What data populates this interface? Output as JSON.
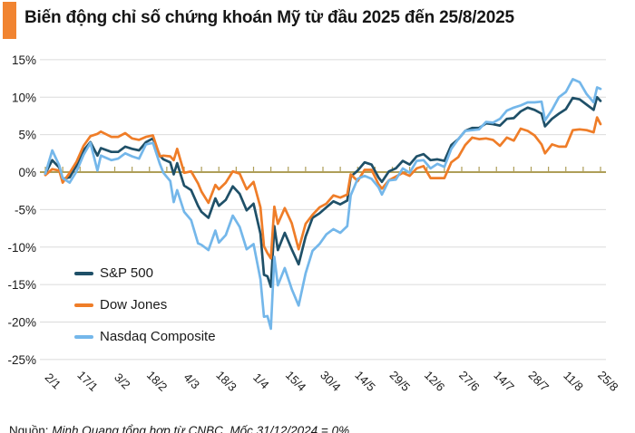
{
  "header": {
    "title": "Biến động chỉ số chứng khoán Mỹ từ đầu 2025 đến 25/8/2025",
    "accent_color": "#F18431"
  },
  "footer": {
    "prefix": "Nguồn:",
    "body": " Minh Quang tổng hợp từ CNBC. Mốc 31/12/2024 = 0%."
  },
  "chart_data": {
    "type": "line",
    "title": "Biến động chỉ số chứng khoán Mỹ từ đầu 2025 đến 25/8/2025",
    "xlabel": "",
    "ylabel": "",
    "baseline_note": "31/12/2024 = 0%",
    "grid": "horizontal-only",
    "grid_color": "#DBDBDB",
    "zero_line_color": "#AE9E58",
    "text_color": "#1a1a1a",
    "ylim": [
      -25,
      15
    ],
    "x_range": [
      0,
      160
    ],
    "y_ticks": [
      {
        "value": 15,
        "label": "15%"
      },
      {
        "value": 10,
        "label": "10%"
      },
      {
        "value": 5,
        "label": "5%"
      },
      {
        "value": 0,
        "label": "0%"
      },
      {
        "value": -5,
        "label": "-5%"
      },
      {
        "value": -10,
        "label": "-10%"
      },
      {
        "value": -15,
        "label": "-15%"
      },
      {
        "value": -20,
        "label": "-20%"
      },
      {
        "value": -25,
        "label": "-25%"
      }
    ],
    "x_tick_indices": [
      0,
      10,
      20,
      30,
      40,
      50,
      60,
      70,
      80,
      90,
      100,
      110,
      120,
      130,
      140,
      150,
      160
    ],
    "x_tick_labels": [
      "2/1",
      "17/1",
      "3/2",
      "18/2",
      "4/3",
      "18/3",
      "1/4",
      "15/4",
      "30/4",
      "14/5",
      "29/5",
      "12/6",
      "27/6",
      "14/7",
      "28/7",
      "11/8",
      "25/8"
    ],
    "legend_position": "inside-left-bottom",
    "x": [
      0,
      2,
      4,
      5,
      7,
      9,
      11,
      13,
      15,
      16,
      19,
      21,
      23,
      25,
      27,
      29,
      31,
      33,
      34,
      36,
      37,
      38,
      40,
      42,
      44,
      45,
      47,
      49,
      50,
      52,
      54,
      56,
      58,
      60,
      62,
      63,
      64,
      65,
      66,
      67,
      69,
      71,
      73,
      75,
      77,
      79,
      81,
      83,
      85,
      87,
      88,
      90,
      92,
      94,
      96,
      97,
      99,
      101,
      103,
      105,
      107,
      109,
      111,
      113,
      115,
      117,
      119,
      121,
      123,
      125,
      127,
      129,
      131,
      133,
      135,
      137,
      139,
      141,
      143,
      144,
      146,
      148,
      150,
      152,
      154,
      156,
      158,
      159,
      160
    ],
    "series": [
      {
        "id": "sp500",
        "name": "S&P 500",
        "color": "#1F5068",
        "unit": "% YTD",
        "values": [
          -0.2,
          1.6,
          0.6,
          -0.9,
          -0.7,
          0.9,
          2.9,
          4.0,
          2.2,
          3.2,
          2.7,
          2.7,
          3.4,
          3.1,
          2.9,
          4.0,
          4.5,
          2.2,
          1.7,
          1.3,
          -0.3,
          1.2,
          -1.8,
          -2.4,
          -4.5,
          -5.3,
          -6.1,
          -3.5,
          -4.5,
          -3.7,
          -1.9,
          -2.9,
          -5.1,
          -4.2,
          -8.2,
          -13.7,
          -13.9,
          -15.3,
          -7.2,
          -10.4,
          -8.1,
          -10.3,
          -12.3,
          -8.6,
          -6.1,
          -5.5,
          -4.7,
          -3.9,
          -4.3,
          -3.8,
          -0.6,
          0.2,
          1.3,
          1.0,
          -0.7,
          -1.3,
          0.1,
          0.5,
          1.5,
          1.0,
          2.1,
          2.4,
          1.6,
          1.7,
          1.5,
          3.6,
          4.4,
          5.5,
          5.9,
          5.9,
          6.5,
          6.4,
          6.2,
          7.1,
          7.2,
          8.1,
          8.6,
          8.3,
          7.8,
          6.1,
          7.1,
          7.8,
          8.4,
          9.9,
          9.7,
          9.0,
          8.3,
          10.0,
          9.5
        ]
      },
      {
        "id": "dowjones",
        "name": "Dow Jones",
        "color": "#EF7D28",
        "unit": "% YTD",
        "values": [
          -0.4,
          0.4,
          0.2,
          -1.4,
          -0.1,
          1.4,
          3.5,
          4.8,
          5.1,
          5.4,
          4.7,
          4.7,
          5.2,
          4.5,
          4.3,
          4.7,
          4.9,
          2.1,
          2.2,
          2.1,
          1.6,
          3.1,
          -0.1,
          0.1,
          -1.5,
          -2.6,
          -4.1,
          -1.7,
          -2.3,
          -1.4,
          0.1,
          -0.2,
          -2.3,
          -1.3,
          -4.7,
          -9.9,
          -10.8,
          -11.5,
          -4.6,
          -6.9,
          -4.8,
          -6.8,
          -10.3,
          -6.9,
          -5.7,
          -4.7,
          -4.2,
          -3.1,
          -3.4,
          -3.0,
          -0.3,
          -1.2,
          0.3,
          0.3,
          -1.6,
          -2.2,
          -1.1,
          -0.6,
          -0.1,
          -0.5,
          0.5,
          0.8,
          -0.8,
          -0.8,
          -0.8,
          1.3,
          2.0,
          3.6,
          4.6,
          4.4,
          4.5,
          4.3,
          3.5,
          4.6,
          4.2,
          5.8,
          5.5,
          4.9,
          3.7,
          2.5,
          3.7,
          3.4,
          3.4,
          5.6,
          5.7,
          5.6,
          5.3,
          7.3,
          6.4
        ]
      },
      {
        "id": "nasdaq",
        "name": "Nasdaq Composite",
        "color": "#74B7EA",
        "unit": "% YTD",
        "values": [
          -0.2,
          2.9,
          0.9,
          -0.8,
          -1.4,
          0.1,
          2.3,
          3.9,
          0.2,
          2.2,
          1.6,
          1.8,
          2.5,
          2.1,
          1.8,
          3.7,
          3.9,
          1.1,
          -0.1,
          -1.2,
          -4.0,
          -2.4,
          -5.3,
          -6.4,
          -9.5,
          -9.7,
          -10.4,
          -7.8,
          -9.4,
          -8.4,
          -5.8,
          -7.3,
          -10.3,
          -9.6,
          -14.3,
          -19.3,
          -19.2,
          -20.9,
          -11.3,
          -15.1,
          -12.8,
          -15.6,
          -17.8,
          -13.5,
          -10.5,
          -9.6,
          -8.3,
          -7.6,
          -8.1,
          -7.2,
          -3.1,
          -0.9,
          -0.5,
          -0.9,
          -2.0,
          -3.0,
          -1.1,
          -1.0,
          0.5,
          -0.1,
          1.5,
          1.6,
          0.5,
          1.1,
          0.7,
          3.1,
          4.4,
          5.5,
          5.6,
          5.7,
          6.7,
          6.6,
          7.1,
          8.2,
          8.6,
          8.9,
          9.3,
          9.3,
          9.4,
          6.9,
          8.3,
          10.0,
          10.7,
          12.4,
          12.0,
          10.4,
          9.3,
          11.3,
          11.1
        ]
      }
    ]
  }
}
